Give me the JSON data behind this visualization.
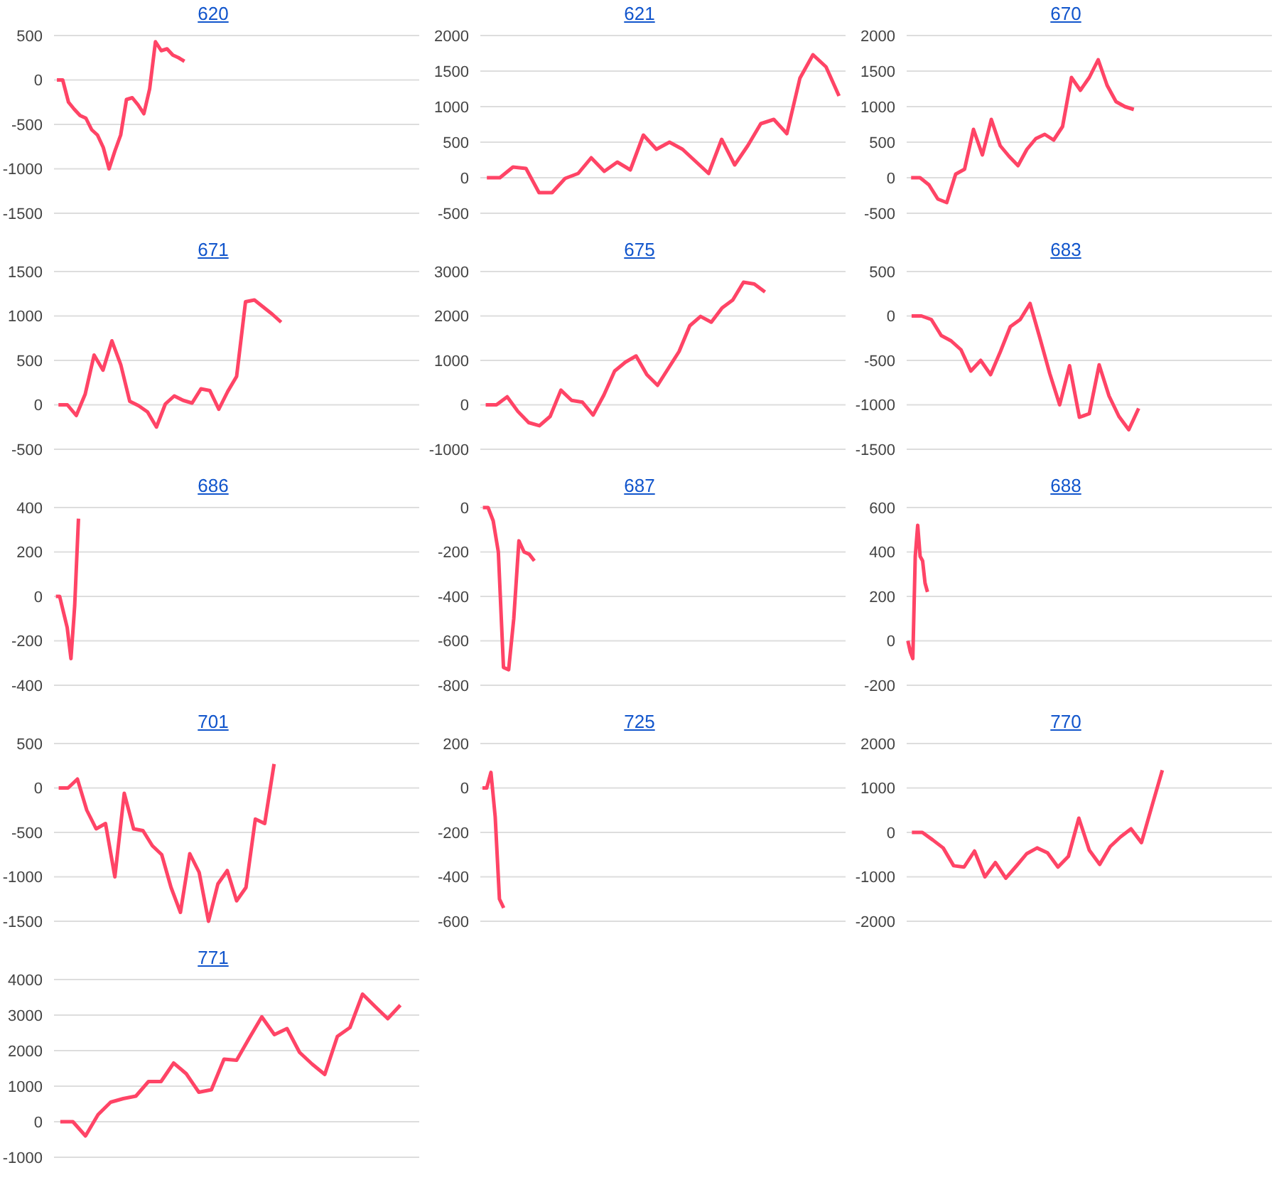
{
  "chart_data": [
    {
      "type": "line",
      "title": "620",
      "categories": [
        null,
        null,
        null,
        null,
        null,
        null,
        null,
        null,
        null,
        null,
        null,
        null,
        null,
        null,
        null,
        null,
        null,
        null,
        null,
        null,
        null,
        null,
        null,
        null,
        null,
        null,
        null,
        null,
        null,
        null,
        null,
        null,
        null,
        null,
        null,
        null,
        null,
        null,
        null,
        null,
        null,
        null,
        null,
        null,
        null,
        null,
        null,
        null,
        null,
        null,
        null,
        null,
        null,
        null,
        null,
        null,
        null,
        null,
        null,
        null,
        null,
        null,
        null
      ],
      "values": [
        0,
        0,
        -250,
        -330,
        -400,
        -430,
        -560,
        -620,
        -760,
        -1000,
        -800,
        -620,
        -220,
        -200,
        -280,
        -380,
        -100,
        430,
        330,
        350,
        280,
        250,
        210,
        null,
        null,
        null,
        null,
        null,
        null,
        null,
        null,
        null,
        null,
        null,
        null,
        null,
        null,
        null,
        null,
        null,
        null,
        null,
        null,
        null,
        null,
        null,
        null,
        null,
        null,
        null,
        null,
        null,
        null,
        null,
        null,
        null,
        null,
        null,
        null,
        null,
        null,
        null,
        null
      ],
      "color": "#ff4466",
      "ylim": [
        -1500,
        500
      ],
      "yticks": [
        -1500,
        -1000,
        -500,
        0,
        500
      ],
      "grid": "y",
      "tick_labels": "y",
      "marker": "none",
      "line_style": "solid"
    },
    {
      "type": "line",
      "title": "621",
      "categories": [
        null,
        null,
        null,
        null,
        null,
        null,
        null,
        null,
        null,
        null,
        null,
        null,
        null,
        null,
        null,
        null,
        null,
        null,
        null,
        null,
        null,
        null,
        null,
        null,
        null,
        null,
        null,
        null
      ],
      "values": [
        0,
        0,
        150,
        130,
        -210,
        -210,
        -10,
        60,
        280,
        90,
        220,
        110,
        600,
        400,
        500,
        400,
        230,
        60,
        540,
        180,
        450,
        760,
        820,
        620,
        1400,
        1730,
        1560,
        1150
      ],
      "color": "#ff4466",
      "ylim": [
        -500,
        2000
      ],
      "yticks": [
        -500,
        0,
        500,
        1000,
        1500,
        2000
      ],
      "grid": "y",
      "tick_labels": "y",
      "marker": "none",
      "line_style": "solid"
    },
    {
      "type": "line",
      "title": "670",
      "categories": [
        null,
        null,
        null,
        null,
        null,
        null,
        null,
        null,
        null,
        null,
        null,
        null,
        null,
        null,
        null,
        null,
        null,
        null,
        null,
        null,
        null,
        null,
        null,
        null,
        null,
        null,
        null,
        null,
        null,
        null,
        null,
        null,
        null,
        null,
        null,
        null,
        null,
        null,
        null,
        null,
        null
      ],
      "values": [
        0,
        0,
        -100,
        -300,
        -350,
        50,
        120,
        680,
        320,
        820,
        450,
        300,
        170,
        400,
        550,
        610,
        530,
        720,
        1410,
        1230,
        1410,
        1660,
        1300,
        1070,
        1000,
        960,
        null,
        null,
        null,
        null,
        null,
        null,
        null,
        null,
        null,
        null,
        null,
        null,
        null,
        null,
        null
      ],
      "color": "#ff4466",
      "ylim": [
        -500,
        2000
      ],
      "yticks": [
        -500,
        0,
        500,
        1000,
        1500,
        2000
      ],
      "grid": "y",
      "tick_labels": "y",
      "marker": "none",
      "line_style": "solid"
    },
    {
      "type": "line",
      "title": "671",
      "categories": [
        null,
        null,
        null,
        null,
        null,
        null,
        null,
        null,
        null,
        null,
        null,
        null,
        null,
        null,
        null,
        null,
        null,
        null,
        null,
        null,
        null,
        null,
        null,
        null,
        null,
        null,
        null,
        null,
        null,
        null,
        null,
        null,
        null,
        null,
        null,
        null,
        null,
        null,
        null,
        null,
        null
      ],
      "values": [
        0,
        0,
        -120,
        120,
        560,
        390,
        720,
        450,
        40,
        -10,
        -80,
        -250,
        10,
        100,
        50,
        20,
        180,
        160,
        -50,
        150,
        320,
        1160,
        1180,
        1100,
        1020,
        930,
        null,
        null,
        null,
        null,
        null,
        null,
        null,
        null,
        null,
        null,
        null,
        null,
        null,
        null,
        null
      ],
      "color": "#ff4466",
      "ylim": [
        -500,
        1500
      ],
      "yticks": [
        -500,
        0,
        500,
        1000,
        1500
      ],
      "grid": "y",
      "tick_labels": "y",
      "marker": "none",
      "line_style": "solid"
    },
    {
      "type": "line",
      "title": "675",
      "categories": [
        null,
        null,
        null,
        null,
        null,
        null,
        null,
        null,
        null,
        null,
        null,
        null,
        null,
        null,
        null,
        null,
        null,
        null,
        null,
        null,
        null,
        null,
        null,
        null,
        null,
        null,
        null,
        null,
        null,
        null,
        null,
        null,
        null,
        null
      ],
      "values": [
        0,
        0,
        180,
        -150,
        -400,
        -470,
        -260,
        330,
        100,
        60,
        -230,
        220,
        760,
        960,
        1100,
        680,
        440,
        820,
        1200,
        1780,
        1990,
        1860,
        2180,
        2360,
        2760,
        2720,
        2540,
        null,
        null,
        null,
        null,
        null,
        null,
        null
      ],
      "color": "#ff4466",
      "ylim": [
        -1000,
        3000
      ],
      "yticks": [
        -1000,
        0,
        1000,
        2000,
        3000
      ],
      "grid": "y",
      "tick_labels": "y",
      "marker": "none",
      "line_style": "solid"
    },
    {
      "type": "line",
      "title": "683",
      "categories": [
        null,
        null,
        null,
        null,
        null,
        null,
        null,
        null,
        null,
        null,
        null,
        null,
        null,
        null,
        null,
        null,
        null,
        null,
        null,
        null,
        null,
        null,
        null,
        null,
        null,
        null,
        null,
        null,
        null,
        null,
        null,
        null,
        null,
        null,
        null,
        null,
        null
      ],
      "values": [
        0,
        0,
        -40,
        -220,
        -280,
        -380,
        -620,
        -500,
        -660,
        -400,
        -120,
        -40,
        140,
        -250,
        -650,
        -1000,
        -560,
        -1140,
        -1100,
        -550,
        -900,
        -1130,
        -1280,
        -1040,
        null,
        null,
        null,
        null,
        null,
        null,
        null,
        null,
        null,
        null,
        null,
        null,
        null
      ],
      "color": "#ff4466",
      "ylim": [
        -1500,
        500
      ],
      "yticks": [
        -1500,
        -1000,
        -500,
        0,
        500
      ],
      "grid": "y",
      "tick_labels": "y",
      "marker": "none",
      "line_style": "solid"
    },
    {
      "type": "line",
      "title": "686",
      "categories": [
        null,
        null,
        null,
        null,
        null,
        null,
        null,
        null,
        null,
        null,
        null,
        null,
        null,
        null,
        null,
        null,
        null,
        null,
        null,
        null,
        null,
        null,
        null,
        null,
        null,
        null,
        null,
        null,
        null,
        null,
        null,
        null,
        null,
        null,
        null,
        null,
        null,
        null,
        null,
        null,
        null,
        null,
        null,
        null,
        null,
        null,
        null,
        null,
        null,
        null,
        null,
        null,
        null,
        null,
        null,
        null,
        null,
        null,
        null,
        null,
        null,
        null,
        null,
        null,
        null,
        null,
        null,
        null,
        null,
        null,
        null,
        null,
        null,
        null,
        null,
        null,
        null,
        null,
        null,
        null,
        null,
        null,
        null,
        null,
        null,
        null,
        null,
        null,
        null,
        null,
        null,
        null,
        null,
        null,
        null,
        null,
        null
      ],
      "values": [
        0,
        0,
        -70,
        -140,
        -280,
        -40,
        350,
        null,
        null,
        null,
        null,
        null,
        null,
        null,
        null,
        null,
        null,
        null,
        null,
        null,
        null,
        null,
        null,
        null,
        null,
        null,
        null,
        null,
        null,
        null,
        null,
        null,
        null,
        null,
        null,
        null,
        null,
        null,
        null,
        null,
        null,
        null,
        null,
        null,
        null,
        null,
        null,
        null,
        null,
        null,
        null,
        null,
        null,
        null,
        null,
        null,
        null,
        null,
        null,
        null,
        null,
        null,
        null,
        null,
        null,
        null,
        null,
        null,
        null,
        null,
        null,
        null,
        null,
        null,
        null,
        null,
        null,
        null,
        null,
        null,
        null,
        null,
        null,
        null,
        null,
        null,
        null,
        null,
        null,
        null,
        null,
        null,
        null,
        null,
        null,
        null,
        null
      ],
      "color": "#ff4466",
      "ylim": [
        -400,
        400
      ],
      "yticks": [
        -400,
        -200,
        0,
        200,
        400
      ],
      "grid": "y",
      "tick_labels": "y",
      "marker": "none",
      "line_style": "solid"
    },
    {
      "type": "line",
      "title": "687",
      "categories": [
        null,
        null,
        null,
        null,
        null,
        null,
        null,
        null,
        null,
        null,
        null,
        null,
        null,
        null,
        null,
        null,
        null,
        null,
        null,
        null,
        null,
        null,
        null,
        null,
        null,
        null,
        null,
        null,
        null,
        null,
        null,
        null,
        null,
        null,
        null,
        null,
        null,
        null,
        null,
        null,
        null,
        null,
        null,
        null,
        null,
        null,
        null,
        null,
        null,
        null,
        null,
        null,
        null,
        null,
        null,
        null,
        null,
        null,
        null,
        null,
        null,
        null,
        null,
        null,
        null,
        null,
        null,
        null,
        null,
        null,
        null
      ],
      "values": [
        0,
        0,
        -60,
        -200,
        -720,
        -730,
        -500,
        -150,
        -200,
        -210,
        -240,
        null,
        null,
        null,
        null,
        null,
        null,
        null,
        null,
        null,
        null,
        null,
        null,
        null,
        null,
        null,
        null,
        null,
        null,
        null,
        null,
        null,
        null,
        null,
        null,
        null,
        null,
        null,
        null,
        null,
        null,
        null,
        null,
        null,
        null,
        null,
        null,
        null,
        null,
        null,
        null,
        null,
        null,
        null,
        null,
        null,
        null,
        null,
        null,
        null,
        null,
        null,
        null,
        null,
        null,
        null,
        null,
        null,
        null,
        null,
        null
      ],
      "color": "#ff4466",
      "ylim": [
        -800,
        0
      ],
      "yticks": [
        -800,
        -600,
        -400,
        -200,
        0
      ],
      "grid": "y",
      "tick_labels": "y",
      "marker": "none",
      "line_style": "solid"
    },
    {
      "type": "line",
      "title": "688",
      "categories": [
        null,
        null,
        null,
        null,
        null,
        null,
        null,
        null,
        null,
        null,
        null,
        null,
        null,
        null,
        null,
        null,
        null,
        null,
        null,
        null,
        null,
        null,
        null,
        null,
        null,
        null,
        null,
        null,
        null,
        null,
        null,
        null,
        null,
        null,
        null,
        null,
        null,
        null,
        null,
        null,
        null,
        null,
        null,
        null,
        null,
        null,
        null,
        null,
        null,
        null,
        null,
        null,
        null,
        null,
        null,
        null,
        null,
        null,
        null,
        null,
        null,
        null,
        null,
        null,
        null,
        null,
        null,
        null,
        null,
        null,
        null,
        null,
        null,
        null,
        null,
        null,
        null,
        null,
        null,
        null,
        null,
        null,
        null,
        null,
        null,
        null,
        null,
        null,
        null,
        null,
        null,
        null,
        null,
        null,
        null,
        null,
        null,
        null,
        null,
        null,
        null,
        null,
        null,
        null,
        null,
        null,
        null,
        null,
        null,
        null,
        null,
        null,
        null,
        null,
        null,
        null,
        null,
        null,
        null,
        null,
        null,
        null,
        null,
        null,
        null,
        null,
        null,
        null,
        null,
        null,
        null,
        null,
        null,
        null,
        null,
        null,
        null,
        null,
        null,
        null,
        null,
        null,
        null,
        null,
        null,
        null,
        null,
        null,
        null
      ],
      "values": [
        0,
        -50,
        -80,
        380,
        520,
        380,
        360,
        260,
        220,
        null,
        null,
        null,
        null,
        null,
        null,
        null,
        null,
        null,
        null,
        null,
        null,
        null,
        null,
        null,
        null,
        null,
        null,
        null,
        null,
        null,
        null,
        null,
        null,
        null,
        null,
        null,
        null,
        null,
        null,
        null,
        null,
        null,
        null,
        null,
        null,
        null,
        null,
        null,
        null,
        null,
        null,
        null,
        null,
        null,
        null,
        null,
        null,
        null,
        null,
        null,
        null,
        null,
        null,
        null,
        null,
        null,
        null,
        null,
        null,
        null,
        null,
        null,
        null,
        null,
        null,
        null,
        null,
        null,
        null,
        null,
        null,
        null,
        null,
        null,
        null,
        null,
        null,
        null,
        null,
        null,
        null,
        null,
        null,
        null,
        null,
        null,
        null,
        null,
        null,
        null,
        null,
        null,
        null,
        null,
        null,
        null,
        null,
        null,
        null,
        null,
        null,
        null,
        null,
        null,
        null,
        null,
        null,
        null,
        null,
        null,
        null,
        null,
        null,
        null,
        null,
        null,
        null,
        null,
        null,
        null,
        null,
        null,
        null,
        null,
        null,
        null,
        null,
        null,
        null,
        null,
        null,
        null,
        null,
        null,
        null,
        null,
        null,
        null,
        null
      ],
      "color": "#ff4466",
      "ylim": [
        -200,
        600
      ],
      "yticks": [
        -200,
        0,
        200,
        400,
        600
      ],
      "grid": "y",
      "tick_labels": "y",
      "marker": "none",
      "line_style": "solid"
    },
    {
      "type": "line",
      "title": "701",
      "categories": [
        null,
        null,
        null,
        null,
        null,
        null,
        null,
        null,
        null,
        null,
        null,
        null,
        null,
        null,
        null,
        null,
        null,
        null,
        null,
        null,
        null,
        null,
        null,
        null,
        null,
        null,
        null,
        null,
        null,
        null,
        null,
        null,
        null,
        null,
        null,
        null,
        null,
        null,
        null
      ],
      "values": [
        0,
        0,
        100,
        -250,
        -460,
        -400,
        -1000,
        -60,
        -460,
        -480,
        -650,
        -750,
        -1120,
        -1400,
        -740,
        -950,
        -1500,
        -1080,
        -930,
        -1270,
        -1120,
        -350,
        -400,
        270,
        null,
        null,
        null,
        null,
        null,
        null,
        null,
        null,
        null,
        null,
        null,
        null,
        null,
        null,
        null
      ],
      "color": "#ff4466",
      "ylim": [
        -1500,
        500
      ],
      "yticks": [
        -1500,
        -1000,
        -500,
        0,
        500
      ],
      "grid": "y",
      "tick_labels": "y",
      "marker": "none",
      "line_style": "solid"
    },
    {
      "type": "line",
      "title": "725",
      "categories": [
        null,
        null,
        null,
        null,
        null,
        null,
        null,
        null,
        null,
        null,
        null,
        null,
        null,
        null,
        null,
        null,
        null,
        null,
        null,
        null,
        null,
        null,
        null,
        null,
        null,
        null,
        null,
        null,
        null,
        null,
        null,
        null,
        null,
        null,
        null,
        null,
        null,
        null,
        null,
        null,
        null,
        null,
        null,
        null,
        null,
        null,
        null,
        null,
        null,
        null,
        null,
        null,
        null,
        null,
        null,
        null,
        null,
        null,
        null,
        null,
        null,
        null,
        null,
        null,
        null,
        null,
        null,
        null,
        null,
        null,
        null,
        null,
        null,
        null,
        null,
        null,
        null,
        null,
        null,
        null,
        null,
        null,
        null,
        null,
        null,
        null
      ],
      "values": [
        0,
        0,
        70,
        -130,
        -500,
        -540,
        null,
        null,
        null,
        null,
        null,
        null,
        null,
        null,
        null,
        null,
        null,
        null,
        null,
        null,
        null,
        null,
        null,
        null,
        null,
        null,
        null,
        null,
        null,
        null,
        null,
        null,
        null,
        null,
        null,
        null,
        null,
        null,
        null,
        null,
        null,
        null,
        null,
        null,
        null,
        null,
        null,
        null,
        null,
        null,
        null,
        null,
        null,
        null,
        null,
        null,
        null,
        null,
        null,
        null,
        null,
        null,
        null,
        null,
        null,
        null,
        null,
        null,
        null,
        null,
        null,
        null,
        null,
        null,
        null,
        null,
        null,
        null,
        null,
        null,
        null,
        null,
        null,
        null,
        null,
        null
      ],
      "color": "#ff4466",
      "ylim": [
        -600,
        200
      ],
      "yticks": [
        -600,
        -400,
        -200,
        0,
        200
      ],
      "grid": "y",
      "tick_labels": "y",
      "marker": "none",
      "line_style": "solid"
    },
    {
      "type": "line",
      "title": "770",
      "categories": [
        null,
        null,
        null,
        null,
        null,
        null,
        null,
        null,
        null,
        null,
        null,
        null,
        null,
        null,
        null,
        null,
        null,
        null,
        null,
        null,
        null,
        null,
        null,
        null,
        null,
        null,
        null,
        null,
        null,
        null,
        null,
        null,
        null,
        null,
        null
      ],
      "values": [
        0,
        0,
        -170,
        -350,
        -750,
        -780,
        -420,
        -1000,
        -680,
        -1030,
        -760,
        -480,
        -350,
        -460,
        -780,
        -540,
        320,
        -400,
        -720,
        -320,
        -100,
        80,
        -230,
        590,
        1400,
        null,
        null,
        null,
        null,
        null,
        null,
        null,
        null,
        null,
        null
      ],
      "color": "#ff4466",
      "ylim": [
        -2000,
        2000
      ],
      "yticks": [
        -2000,
        -1000,
        0,
        1000,
        2000
      ],
      "grid": "y",
      "tick_labels": "y",
      "marker": "none",
      "line_style": "solid"
    },
    {
      "type": "line",
      "title": "771",
      "categories": [
        null,
        null,
        null,
        null,
        null,
        null,
        null,
        null,
        null,
        null,
        null,
        null,
        null,
        null,
        null,
        null,
        null,
        null,
        null,
        null,
        null,
        null,
        null,
        null,
        null,
        null,
        null,
        null,
        null
      ],
      "values": [
        0,
        0,
        -400,
        200,
        550,
        650,
        720,
        1130,
        1130,
        1650,
        1350,
        830,
        900,
        1760,
        1730,
        2350,
        2950,
        2450,
        2620,
        1950,
        1620,
        1330,
        2400,
        2650,
        3590,
        3240,
        2900,
        3280,
        null
      ],
      "color": "#ff4466",
      "ylim": [
        -1000,
        4000
      ],
      "yticks": [
        -1000,
        0,
        1000,
        2000,
        3000,
        4000
      ],
      "grid": "y",
      "tick_labels": "y",
      "marker": "none",
      "line_style": "solid"
    }
  ]
}
